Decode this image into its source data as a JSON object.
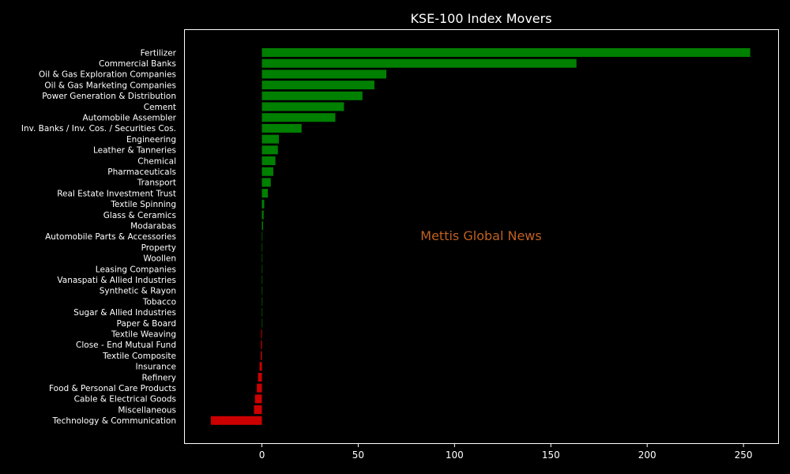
{
  "chart_data": {
    "type": "bar",
    "orientation": "horizontal",
    "title": "KSE-100 Index Movers",
    "xlabel": "",
    "ylabel": "",
    "xlim": [
      -40,
      268
    ],
    "xticks": [
      0,
      50,
      100,
      150,
      200,
      250
    ],
    "grid": false,
    "watermark": "Mettis Global News",
    "colors": {
      "positive": "#008000",
      "negative": "#cc0000",
      "background": "#000000",
      "watermark": "#c06020"
    },
    "categories": [
      "Fertilizer",
      "Commercial Banks",
      "Oil & Gas Exploration Companies",
      "Oil & Gas Marketing Companies",
      "Power Generation & Distribution",
      "Cement",
      "Automobile Assembler",
      "Inv. Banks / Inv. Cos. / Securities Cos.",
      "Engineering",
      "Leather & Tanneries",
      "Chemical",
      "Pharmaceuticals",
      "Transport",
      "Real Estate Investment Trust",
      "Textile Spinning",
      "Glass & Ceramics",
      "Modarabas",
      "Automobile Parts & Accessories",
      "Property",
      "Woollen",
      "Leasing Companies",
      "Vanaspati & Allied Industries",
      "Synthetic & Rayon",
      "Tobacco",
      "Sugar & Allied Industries",
      "Paper & Board",
      "Textile Weaving",
      "Close - End Mutual Fund",
      "Textile Composite",
      "Insurance",
      "Refinery",
      "Food & Personal Care Products",
      "Cable & Electrical Goods",
      "Miscellaneous",
      "Technology & Communication"
    ],
    "values": [
      253.5,
      163.3,
      64.6,
      58.4,
      52.2,
      42.6,
      38.1,
      20.6,
      8.8,
      8.3,
      7.0,
      5.9,
      4.6,
      3.1,
      1.2,
      0.9,
      0.6,
      0.1,
      0.05,
      0.03,
      0.02,
      0.02,
      0.01,
      0.01,
      0.01,
      0.01,
      -0.4,
      -0.5,
      -0.6,
      -1.2,
      -2.0,
      -2.6,
      -3.6,
      -4.1,
      -26.5
    ]
  }
}
